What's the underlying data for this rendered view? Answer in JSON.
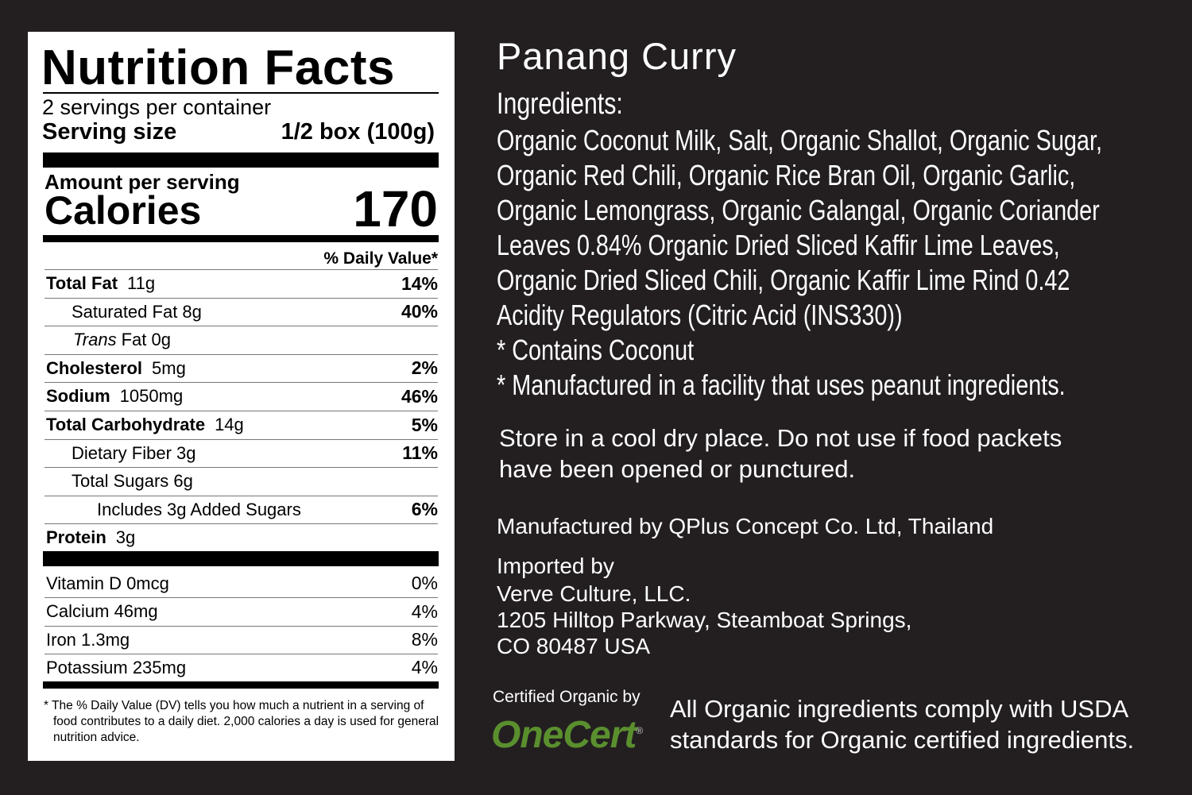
{
  "nutrition": {
    "title": "Nutrition Facts",
    "servings": "2 servings per container",
    "serving_size_label": "Serving size",
    "serving_size_value": "1/2 box (100g)",
    "amount_label": "Amount per serving",
    "calories_label": "Calories",
    "calories_value": "170",
    "dv_header": "% Daily Value*",
    "rows": [
      {
        "label": "Total Fat",
        "amount": "11g",
        "dv": "14%"
      },
      {
        "label": "Saturated Fat 8g",
        "amount": "",
        "dv": "40%"
      },
      {
        "label": "Trans",
        "amount": "Fat 0g",
        "dv": ""
      },
      {
        "label": "Cholesterol",
        "amount": "5mg",
        "dv": "2%"
      },
      {
        "label": "Sodium",
        "amount": "1050mg",
        "dv": "46%"
      },
      {
        "label": "Total Carbohydrate",
        "amount": "14g",
        "dv": "5%"
      },
      {
        "label": "Dietary Fiber 3g",
        "amount": "",
        "dv": "11%"
      },
      {
        "label": "Total Sugars 6g",
        "amount": "",
        "dv": ""
      },
      {
        "label": "Includes 3g Added Sugars",
        "amount": "",
        "dv": "6%"
      },
      {
        "label": "Protein",
        "amount": "3g",
        "dv": ""
      }
    ],
    "vitamins": [
      {
        "label": "Vitamin D 0mcg",
        "dv": "0%"
      },
      {
        "label": "Calcium 46mg",
        "dv": "4%"
      },
      {
        "label": "Iron 1.3mg",
        "dv": "8%"
      },
      {
        "label": "Potassium 235mg",
        "dv": "4%"
      }
    ],
    "footnote": "* The % Daily Value (DV) tells you how much a nutrient in a serving of food contributes to a daily diet. 2,000 calories a day is used for general nutrition advice."
  },
  "product": {
    "title": "Panang Curry",
    "ingredients_heading": "Ingredients:",
    "ingredient_lines": [
      "Organic Coconut Milk, Salt, Organic Shallot, Organic Sugar,",
      "Organic Red Chili, Organic Rice Bran Oil, Organic Garlic,",
      "Organic Lemongrass, Organic Galangal, Organic Coriander",
      "Leaves 0.84% Organic Dried Sliced Kaffir Lime Leaves,",
      "Organic Dried Sliced Chili, Organic Kaffir Lime Rind 0.42",
      "Acidity Regulators (Citric Acid (INS330))",
      "* Contains Coconut",
      "* Manufactured in a facility that uses peanut ingredients."
    ],
    "storage_lines": [
      "Store in a cool dry place.  Do not use if food packets",
      "have been opened or punctured."
    ],
    "manufacturer": "Manufactured by QPlus Concept Co. Ltd, Thailand",
    "imported_heading": "Imported by",
    "importer_lines": [
      "Verve Culture, LLC.",
      "1205 Hilltop Parkway, Steamboat Springs,",
      "CO 80487  USA"
    ],
    "certified_by": "Certified Organic by",
    "cert_logo": "OneCert",
    "usda_lines": [
      "All Organic ingredients comply with USDA",
      "standards for Organic certified ingredients."
    ]
  },
  "colors": {
    "background": "#231f20",
    "logo_green": "#5a8f2e"
  }
}
